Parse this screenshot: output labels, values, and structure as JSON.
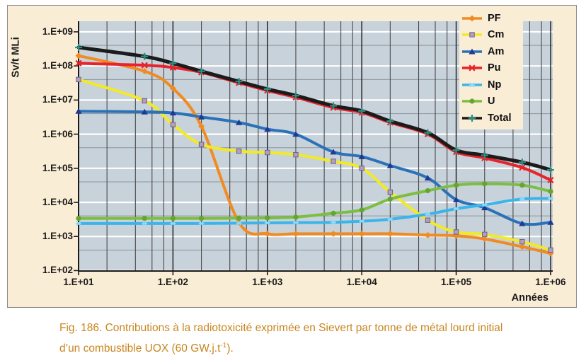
{
  "axis": {
    "y_title": "Sv/t MLi",
    "x_title": "Années",
    "y_tick_labels": [
      "1.E+09",
      "1.E+08",
      "1.E+07",
      "1.E+06",
      "1.E+05",
      "1.E+04",
      "1.E+03",
      "1.E+02"
    ],
    "x_tick_labels": [
      "1.E+01",
      "1.E+02",
      "1.E+03",
      "1.E+04",
      "1.E+05",
      "1.E+06"
    ]
  },
  "caption": {
    "line1": "Fig. 186. Contributions à la radiotoxicité exprimée en Sievert par tonne de métal lourd initial",
    "line2_pre": "d’un combustible UOX (60 GW.j.t",
    "line2_sup": "-1",
    "line2_post": ").",
    "color": "#C8861F"
  },
  "chart_data": {
    "type": "line",
    "title": "",
    "xlabel": "Années",
    "ylabel": "Sv/t MLi",
    "x_scale": "log",
    "y_scale": "log",
    "x_range": [
      10,
      1000000
    ],
    "y_range": [
      100,
      1000000000
    ],
    "grid": {
      "plot_bg": "#C8D2DB",
      "major_h_color": "#ffffff",
      "minor_h_color": "#5a646e",
      "major_v_color": "#2f2f2f",
      "minor_v_color": "#4a4a4a",
      "axis_color": "#1a1a1a",
      "minor_v_positions": [
        2,
        4,
        6,
        8
      ],
      "minor_h_positions": [
        4
      ]
    },
    "legend_position": "top-right",
    "x": [
      10,
      50,
      100,
      200,
      500,
      1000,
      2000,
      5000,
      10000,
      20000,
      50000,
      100000,
      200000,
      500000,
      1000000
    ],
    "series": [
      {
        "name": "PF",
        "color": "#F18B21",
        "marker": "diamond",
        "marker_color": "#F18B21",
        "line_width": 4,
        "values": [
          200000000.0,
          70000000.0,
          22000000.0,
          1700000.0,
          2600.0,
          1200.0,
          1200.0,
          1200.0,
          1200.0,
          1200.0,
          1100.0,
          1050.0,
          850.0,
          500.0,
          320.0
        ]
      },
      {
        "name": "Cm",
        "color": "#F2EA25",
        "marker": "square",
        "marker_color": "#AF9FC2",
        "line_width": 4,
        "values": [
          40000000.0,
          9500000.0,
          1900000.0,
          500000.0,
          320000.0,
          290000.0,
          250000.0,
          160000.0,
          100000.0,
          20000.0,
          3000.0,
          1350.0,
          1150.0,
          700.0,
          400.0
        ]
      },
      {
        "name": "Am",
        "color": "#2A72B8",
        "marker": "triangle",
        "marker_color": "#1E3A96",
        "line_width": 4,
        "values": [
          4700000.0,
          4500000.0,
          4200000.0,
          3200000.0,
          2200000.0,
          1400000.0,
          1000000.0,
          300000.0,
          220000.0,
          120000.0,
          52000.0,
          12000.0,
          7000.0,
          2400.0,
          2600.0
        ]
      },
      {
        "name": "Pu",
        "color": "#E8232B",
        "marker": "x",
        "marker_color": "#E8232B",
        "line_width": 4,
        "values": [
          120000000.0,
          105000000.0,
          90000000.0,
          65000000.0,
          32000000.0,
          19000000.0,
          12000000.0,
          6000000.0,
          4300000.0,
          2200000.0,
          1000000.0,
          300000.0,
          200000.0,
          105000.0,
          45000.0
        ]
      },
      {
        "name": "Np",
        "color": "#3AB5E9",
        "marker": "asterisk",
        "marker_color": "#8FD8F6",
        "line_width": 4,
        "values": [
          2400.0,
          2400.0,
          2400.0,
          2400.0,
          2450.0,
          2500.0,
          2550.0,
          2600.0,
          2800.0,
          3200.0,
          4500.0,
          6500.0,
          8500.0,
          12500.0,
          13000.0
        ]
      },
      {
        "name": "U",
        "color": "#7CBE41",
        "marker": "circle",
        "marker_color": "#64A62E",
        "line_width": 4,
        "values": [
          3400.0,
          3400.0,
          3400.0,
          3400.0,
          3450.0,
          3500.0,
          3700.0,
          4800.0,
          6000.0,
          12500.0,
          22000.0,
          32000.0,
          35000.0,
          32000.0,
          21000.0
        ]
      },
      {
        "name": "Total",
        "color": "#1B1B1B",
        "marker": "plus",
        "marker_color": "#2F8F83",
        "line_width": 5,
        "values": [
          350000000.0,
          190000000.0,
          120000000.0,
          70000000.0,
          35000000.0,
          21000000.0,
          13500000.0,
          6800000.0,
          4800000.0,
          2400000.0,
          1100000.0,
          340000.0,
          240000.0,
          150000.0,
          90000.0
        ]
      }
    ]
  }
}
